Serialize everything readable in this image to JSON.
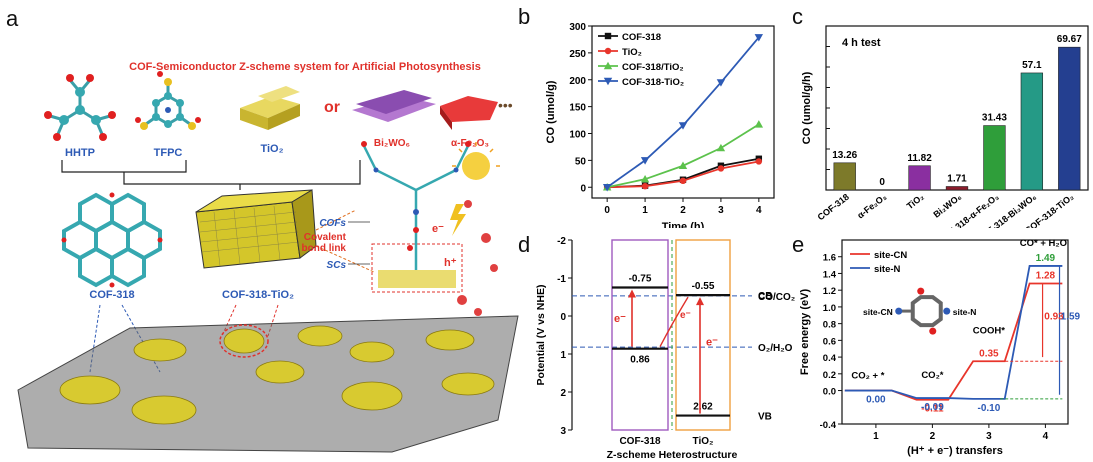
{
  "panels": {
    "a": "a",
    "b": "b",
    "c": "c",
    "d": "d",
    "e": "e"
  },
  "panel_a": {
    "title": "COF-Semiconductor  Z-scheme system for Artificial Photosynthesis",
    "molecules": [
      "HHTP",
      "TFPC",
      "TiO₂",
      "Bi₂WO₆",
      "α-Fe₂O₃"
    ],
    "or_text": "or",
    "dots": "•••",
    "cof_label": "COF-318",
    "composite_label": "COF-318-TiO₂",
    "side_labels": {
      "cofs": "COFs",
      "covalent": "Covalent",
      "bond_link": "bond link",
      "scs": "SCs",
      "e": "e⁻",
      "h": "h⁺"
    }
  },
  "chart_data": [
    {
      "type": "line",
      "panel": "b",
      "xlabel": "Time (h)",
      "ylabel": "CO (umol/g)",
      "xlim": [
        -0.4,
        4.4
      ],
      "ylim": [
        -20,
        300
      ],
      "x": [
        0,
        1,
        2,
        3,
        4
      ],
      "xticks": [
        0,
        1,
        2,
        3,
        4
      ],
      "yticks": [
        0,
        50,
        100,
        150,
        200,
        250,
        300
      ],
      "legend": "top-left",
      "series": [
        {
          "name": "COF-318",
          "color": "#111111",
          "marker": "square",
          "values": [
            0,
            3,
            14,
            40,
            53
          ]
        },
        {
          "name": "TiO₂",
          "color": "#e8352b",
          "marker": "circle",
          "values": [
            0,
            2,
            12,
            35,
            48
          ]
        },
        {
          "name": "COF-318/TiO₂",
          "color": "#5cc24c",
          "marker": "triangle-up",
          "values": [
            0,
            15,
            40,
            73,
            117
          ]
        },
        {
          "name": "COF-318-TiO₂",
          "color": "#2d5ab5",
          "marker": "triangle-down",
          "values": [
            0,
            50,
            115,
            195,
            279
          ]
        }
      ]
    },
    {
      "type": "bar",
      "panel": "c",
      "title": "4 h test",
      "ylabel": "CO (umol/g/h)",
      "ylim": [
        0,
        80
      ],
      "yticks": [
        0,
        10,
        20,
        30,
        40,
        50,
        60,
        70,
        80
      ],
      "categories": [
        "COF-318",
        "α-Fe₂O₃",
        "TiO₂",
        "Bi₂WO₆",
        "COF-318-α-Fe₂O₃",
        "COF-318-Bi₂WO₆",
        "COF-318-TiO₂"
      ],
      "values": [
        13.26,
        0,
        11.82,
        1.71,
        31.43,
        57.1,
        69.67
      ],
      "labels": [
        "13.26",
        "0",
        "11.82",
        "1.71",
        "31.43",
        "57.1",
        "69.67"
      ],
      "colors": [
        "#7d7a2a",
        "#999999",
        "#8a2fa0",
        "#8a1c2b",
        "#2f9e3a",
        "#259a86",
        "#243f90"
      ]
    },
    {
      "type": "diagram",
      "panel": "d",
      "ylabel": "Potential (V vs NHE)",
      "xlabel": "Z-scheme Heterostructure",
      "ylim": [
        -2,
        3
      ],
      "yticks": [
        -2,
        -1,
        0,
        1,
        2,
        3
      ],
      "materials": [
        {
          "name": "COF-318",
          "cb": -0.75,
          "vb": 0.86,
          "cb_label": "-0.75",
          "vb_label": "0.86",
          "box_color": "#a05abf"
        },
        {
          "name": "TiO₂",
          "cb": -0.55,
          "vb": 2.62,
          "cb_label": "-0.55",
          "vb_label": "2.62",
          "box_color": "#f0a040"
        }
      ],
      "reference_lines": [
        {
          "value": -0.53,
          "label": "CO/CO₂"
        },
        {
          "value": 0.82,
          "label": "O₂/H₂O"
        }
      ],
      "band_labels": {
        "cb": "CB",
        "vb": "VB"
      },
      "electron_label": "e⁻"
    },
    {
      "type": "line",
      "panel": "e",
      "xlabel": "(H⁺ + e⁻) transfers",
      "ylabel": "Free energy (eV)",
      "xlim": [
        0.4,
        4.4
      ],
      "ylim": [
        -0.4,
        1.8
      ],
      "xticks": [
        1,
        2,
        3,
        4
      ],
      "yticks": [
        -0.4,
        0.0,
        0.2,
        0.4,
        0.6,
        0.8,
        1.0,
        1.2,
        1.4,
        1.6
      ],
      "ytick_labels": [
        "-0.4",
        "0.0",
        "0.2",
        "0.4",
        "0.6",
        "0.8",
        "1.0",
        "1.2",
        "1.4",
        "1.6"
      ],
      "legend": "top-left",
      "steps": [
        1,
        2,
        3,
        4
      ],
      "step_labels": [
        "CO₂ + *",
        "CO₂*",
        "COOH*",
        "CO* + H₂O"
      ],
      "series": [
        {
          "name": "site-CN",
          "color": "#e8352b",
          "values": [
            0.0,
            -0.11,
            0.35,
            1.28
          ],
          "labels": [
            "",
            "-0.11",
            "0.35",
            "1.28"
          ]
        },
        {
          "name": "site-N",
          "color": "#2d5ab5",
          "values": [
            0.0,
            -0.09,
            -0.1,
            1.49
          ],
          "labels": [
            "0.00",
            "-0.09",
            "-0.10",
            ""
          ]
        }
      ],
      "green_label": "1.49",
      "barrier_labels": [
        {
          "text": "0.93",
          "color": "#e8352b"
        },
        {
          "text": "1.59",
          "color": "#2d5ab5"
        }
      ],
      "structure_labels": {
        "left": "site-CN",
        "right": "site-N"
      }
    }
  ]
}
